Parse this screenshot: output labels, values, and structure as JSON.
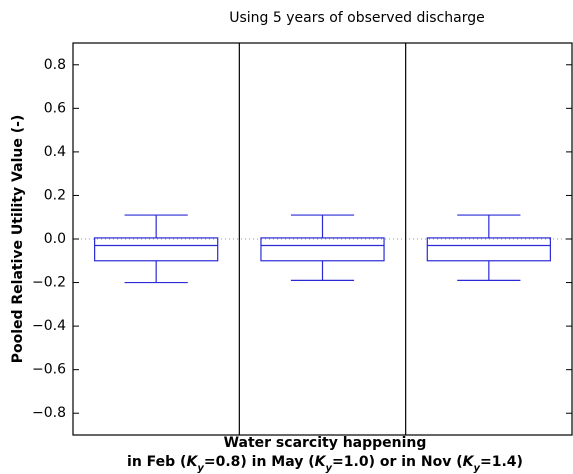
{
  "chart_data": {
    "type": "box",
    "title": "Using 5 years of observed discharge",
    "ylabel": "Pooled Relative Utility Value (-)",
    "xlabel_line1": "Water scarcity happening",
    "xlabel_line2": [
      "in Feb (",
      "K",
      "y",
      "=0.8) in May (",
      "K",
      "y",
      "=1.0) or in Nov (",
      "K",
      "y",
      "=1.4)"
    ],
    "categories": [
      null,
      null,
      null
    ],
    "boxes": [
      {
        "whislo": -0.2,
        "q1": -0.1,
        "med": -0.03,
        "q3": 0.005,
        "whishi": 0.11
      },
      {
        "whislo": -0.19,
        "q1": -0.1,
        "med": -0.03,
        "q3": 0.005,
        "whishi": 0.11
      },
      {
        "whislo": -0.19,
        "q1": -0.1,
        "med": -0.03,
        "q3": 0.005,
        "whishi": 0.11
      }
    ],
    "color": "#2b2bd6",
    "reference_line": 0,
    "ylim": [
      -0.9,
      0.9
    ],
    "yticks": [
      {
        "value": -0.8,
        "label": "−0.8"
      },
      {
        "value": -0.6,
        "label": "−0.6"
      },
      {
        "value": -0.4,
        "label": "−0.4"
      },
      {
        "value": -0.2,
        "label": "−0.2"
      },
      {
        "value": 0,
        "label": "0.0"
      },
      {
        "value": 0.2,
        "label": "0.2"
      },
      {
        "value": 0.4,
        "label": "0.4"
      },
      {
        "value": 0.6,
        "label": "0.6"
      },
      {
        "value": 0.8,
        "label": "0.8"
      }
    ]
  }
}
